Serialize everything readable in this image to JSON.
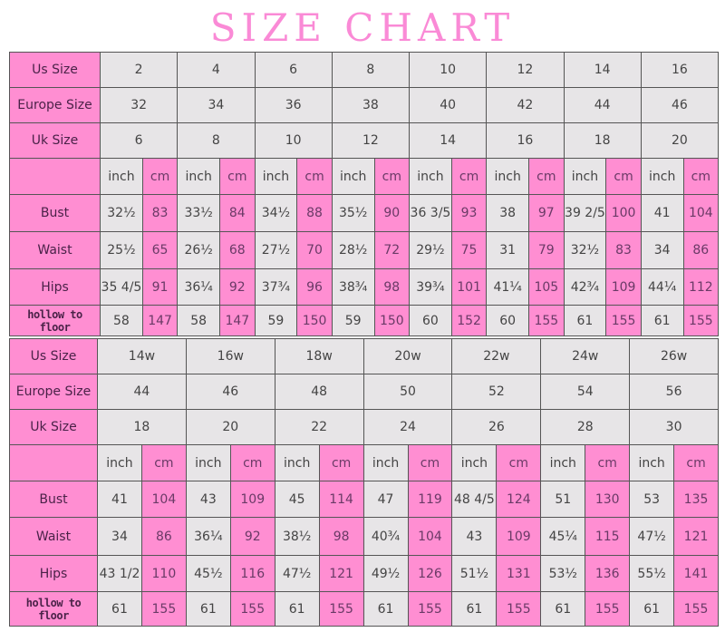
{
  "title": "SIZE CHART",
  "colors": {
    "pink": "#ff8ed2",
    "gray": "#e7e5e7",
    "title": "#fa8ad6"
  },
  "chart_data": [
    {
      "type": "table",
      "row_labels": {
        "us": "Us Size",
        "eu": "Europe Size",
        "uk": "Uk Size",
        "bust": "Bust",
        "waist": "Waist",
        "hips": "Hips",
        "hollow": "hollow to floor"
      },
      "unit_labels": [
        "inch",
        "cm"
      ],
      "us": [
        "2",
        "4",
        "6",
        "8",
        "10",
        "12",
        "14",
        "16"
      ],
      "eu": [
        "32",
        "34",
        "36",
        "38",
        "40",
        "42",
        "44",
        "46"
      ],
      "uk": [
        "6",
        "8",
        "10",
        "12",
        "14",
        "16",
        "18",
        "20"
      ],
      "bust": [
        [
          "32½",
          "83"
        ],
        [
          "33½",
          "84"
        ],
        [
          "34½",
          "88"
        ],
        [
          "35½",
          "90"
        ],
        [
          "36 3/5",
          "93"
        ],
        [
          "38",
          "97"
        ],
        [
          "39 2/5",
          "100"
        ],
        [
          "41",
          "104"
        ]
      ],
      "waist": [
        [
          "25½",
          "65"
        ],
        [
          "26½",
          "68"
        ],
        [
          "27½",
          "70"
        ],
        [
          "28½",
          "72"
        ],
        [
          "29½",
          "75"
        ],
        [
          "31",
          "79"
        ],
        [
          "32½",
          "83"
        ],
        [
          "34",
          "86"
        ]
      ],
      "hips": [
        [
          "35 4/5",
          "91"
        ],
        [
          "36¼",
          "92"
        ],
        [
          "37¾",
          "96"
        ],
        [
          "38¾",
          "98"
        ],
        [
          "39¾",
          "101"
        ],
        [
          "41¼",
          "105"
        ],
        [
          "42¾",
          "109"
        ],
        [
          "44¼",
          "112"
        ]
      ],
      "hollow": [
        [
          "58",
          "147"
        ],
        [
          "58",
          "147"
        ],
        [
          "59",
          "150"
        ],
        [
          "59",
          "150"
        ],
        [
          "60",
          "152"
        ],
        [
          "60",
          "155"
        ],
        [
          "61",
          "155"
        ],
        [
          "61",
          "155"
        ]
      ]
    },
    {
      "type": "table",
      "row_labels": {
        "us": "Us Size",
        "eu": "Europe Size",
        "uk": "Uk Size",
        "bust": "Bust",
        "waist": "Waist",
        "hips": "Hips",
        "hollow": "hollow to floor"
      },
      "unit_labels": [
        "inch",
        "cm"
      ],
      "us": [
        "14w",
        "16w",
        "18w",
        "20w",
        "22w",
        "24w",
        "26w"
      ],
      "eu": [
        "44",
        "46",
        "48",
        "50",
        "52",
        "54",
        "56"
      ],
      "uk": [
        "18",
        "20",
        "22",
        "24",
        "26",
        "28",
        "30"
      ],
      "bust": [
        [
          "41",
          "104"
        ],
        [
          "43",
          "109"
        ],
        [
          "45",
          "114"
        ],
        [
          "47",
          "119"
        ],
        [
          "48 4/5",
          "124"
        ],
        [
          "51",
          "130"
        ],
        [
          "53",
          "135"
        ]
      ],
      "waist": [
        [
          "34",
          "86"
        ],
        [
          "36¼",
          "92"
        ],
        [
          "38½",
          "98"
        ],
        [
          "40¾",
          "104"
        ],
        [
          "43",
          "109"
        ],
        [
          "45¼",
          "115"
        ],
        [
          "47½",
          "121"
        ]
      ],
      "hips": [
        [
          "43 1/2",
          "110"
        ],
        [
          "45½",
          "116"
        ],
        [
          "47½",
          "121"
        ],
        [
          "49½",
          "126"
        ],
        [
          "51½",
          "131"
        ],
        [
          "53½",
          "136"
        ],
        [
          "55½",
          "141"
        ]
      ],
      "hollow": [
        [
          "61",
          "155"
        ],
        [
          "61",
          "155"
        ],
        [
          "61",
          "155"
        ],
        [
          "61",
          "155"
        ],
        [
          "61",
          "155"
        ],
        [
          "61",
          "155"
        ],
        [
          "61",
          "155"
        ]
      ]
    }
  ]
}
